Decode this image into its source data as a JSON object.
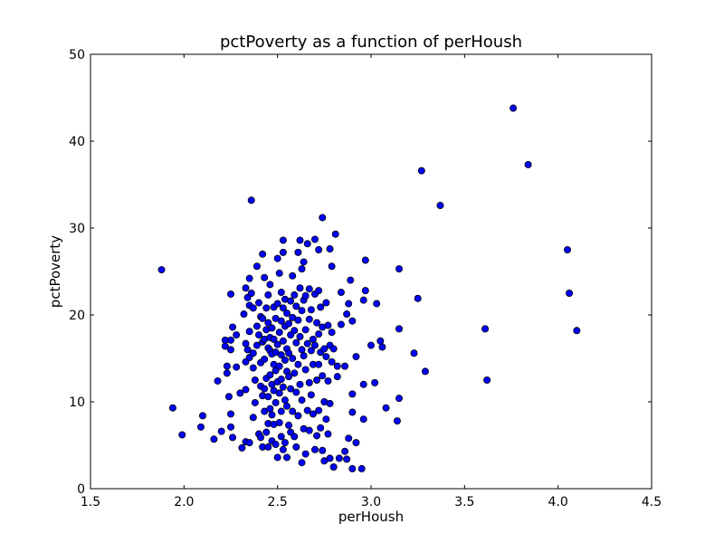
{
  "chart_data": {
    "type": "scatter",
    "title": "pctPoverty as a function of perHoush",
    "xlabel": "perHoush",
    "ylabel": "pctPoverty",
    "xlim": [
      1.5,
      4.5
    ],
    "ylim": [
      0,
      50
    ],
    "xticks": [
      1.5,
      2.0,
      2.5,
      3.0,
      3.5,
      4.0,
      4.5
    ],
    "xtick_labels": [
      "1.5",
      "2.0",
      "2.5",
      "3.0",
      "3.5",
      "4.0",
      "4.5"
    ],
    "yticks": [
      0,
      10,
      20,
      30,
      40,
      50
    ],
    "ytick_labels": [
      "0",
      "10",
      "20",
      "30",
      "40",
      "50"
    ],
    "grid": false,
    "marker_color": "#0000ff",
    "marker_edge": "#000000",
    "points": [
      [
        1.88,
        25.2
      ],
      [
        1.94,
        9.3
      ],
      [
        1.99,
        6.2
      ],
      [
        2.09,
        7.1
      ],
      [
        2.1,
        8.4
      ],
      [
        2.16,
        5.7
      ],
      [
        2.18,
        12.4
      ],
      [
        2.2,
        6.6
      ],
      [
        2.22,
        17.1
      ],
      [
        2.22,
        16.4
      ],
      [
        2.23,
        14.1
      ],
      [
        2.23,
        13.3
      ],
      [
        2.24,
        10.6
      ],
      [
        2.25,
        22.4
      ],
      [
        2.25,
        17.1
      ],
      [
        2.25,
        16.0
      ],
      [
        2.25,
        8.6
      ],
      [
        2.25,
        7.1
      ],
      [
        2.26,
        18.6
      ],
      [
        2.26,
        5.9
      ],
      [
        2.28,
        17.7
      ],
      [
        2.28,
        14.0
      ],
      [
        2.3,
        11.0
      ],
      [
        2.31,
        4.7
      ],
      [
        2.32,
        20.1
      ],
      [
        2.33,
        23.1
      ],
      [
        2.33,
        16.7
      ],
      [
        2.33,
        14.6
      ],
      [
        2.33,
        11.4
      ],
      [
        2.33,
        5.4
      ],
      [
        2.34,
        22.0
      ],
      [
        2.34,
        16.0
      ],
      [
        2.35,
        24.2
      ],
      [
        2.35,
        21.1
      ],
      [
        2.35,
        18.1
      ],
      [
        2.35,
        15.1
      ],
      [
        2.35,
        5.3
      ],
      [
        2.36,
        33.2
      ],
      [
        2.36,
        22.5
      ],
      [
        2.37,
        20.8
      ],
      [
        2.37,
        15.6
      ],
      [
        2.37,
        13.9
      ],
      [
        2.37,
        8.2
      ],
      [
        2.38,
        12.5
      ],
      [
        2.38,
        9.9
      ],
      [
        2.39,
        25.6
      ],
      [
        2.39,
        18.7
      ],
      [
        2.39,
        16.5
      ],
      [
        2.4,
        21.4
      ],
      [
        2.4,
        17.7
      ],
      [
        2.4,
        6.3
      ],
      [
        2.41,
        19.8
      ],
      [
        2.41,
        14.5
      ],
      [
        2.41,
        11.8
      ],
      [
        2.41,
        5.9
      ],
      [
        2.42,
        27.0
      ],
      [
        2.42,
        19.6
      ],
      [
        2.42,
        16.9
      ],
      [
        2.42,
        10.7
      ],
      [
        2.42,
        4.8
      ],
      [
        2.43,
        24.3
      ],
      [
        2.43,
        17.2
      ],
      [
        2.43,
        14.9
      ],
      [
        2.43,
        11.5
      ],
      [
        2.43,
        8.9
      ],
      [
        2.44,
        20.8
      ],
      [
        2.44,
        18.3
      ],
      [
        2.44,
        12.7
      ],
      [
        2.44,
        6.5
      ],
      [
        2.45,
        22.3
      ],
      [
        2.45,
        19.1
      ],
      [
        2.45,
        16.2
      ],
      [
        2.45,
        10.6
      ],
      [
        2.45,
        7.5
      ],
      [
        2.45,
        4.8
      ],
      [
        2.46,
        23.5
      ],
      [
        2.46,
        17.4
      ],
      [
        2.46,
        15.9
      ],
      [
        2.46,
        13.1
      ],
      [
        2.46,
        9.2
      ],
      [
        2.47,
        18.5
      ],
      [
        2.47,
        15.5
      ],
      [
        2.47,
        12.0
      ],
      [
        2.47,
        8.5
      ],
      [
        2.47,
        5.5
      ],
      [
        2.48,
        20.9
      ],
      [
        2.48,
        17.2
      ],
      [
        2.48,
        14.3
      ],
      [
        2.48,
        11.3
      ],
      [
        2.48,
        7.4
      ],
      [
        2.49,
        19.6
      ],
      [
        2.49,
        15.7
      ],
      [
        2.49,
        13.6
      ],
      [
        2.49,
        9.9
      ],
      [
        2.49,
        5.1
      ],
      [
        2.5,
        26.5
      ],
      [
        2.5,
        21.3
      ],
      [
        2.5,
        16.6
      ],
      [
        2.5,
        12.3
      ],
      [
        2.5,
        3.6
      ],
      [
        2.51,
        24.8
      ],
      [
        2.51,
        18.0
      ],
      [
        2.51,
        14.1
      ],
      [
        2.51,
        11.0
      ],
      [
        2.51,
        7.6
      ],
      [
        2.52,
        22.6
      ],
      [
        2.52,
        19.3
      ],
      [
        2.52,
        15.4
      ],
      [
        2.52,
        12.6
      ],
      [
        2.52,
        8.9
      ],
      [
        2.52,
        6.0
      ],
      [
        2.53,
        28.6
      ],
      [
        2.53,
        27.2
      ],
      [
        2.53,
        20.8
      ],
      [
        2.53,
        17.0
      ],
      [
        2.53,
        11.7
      ],
      [
        2.53,
        4.5
      ],
      [
        2.54,
        21.8
      ],
      [
        2.54,
        18.7
      ],
      [
        2.54,
        14.8
      ],
      [
        2.54,
        10.2
      ],
      [
        2.54,
        5.3
      ],
      [
        2.55,
        20.2
      ],
      [
        2.55,
        16.1
      ],
      [
        2.55,
        13.5
      ],
      [
        2.55,
        9.5
      ],
      [
        2.55,
        3.6
      ],
      [
        2.56,
        19.0
      ],
      [
        2.56,
        15.6
      ],
      [
        2.56,
        12.9
      ],
      [
        2.56,
        7.3
      ],
      [
        2.57,
        21.6
      ],
      [
        2.57,
        17.7
      ],
      [
        2.57,
        11.5
      ],
      [
        2.57,
        6.5
      ],
      [
        2.58,
        24.5
      ],
      [
        2.58,
        19.7
      ],
      [
        2.58,
        15.0
      ],
      [
        2.58,
        8.9
      ],
      [
        2.59,
        22.3
      ],
      [
        2.59,
        18.2
      ],
      [
        2.59,
        13.3
      ],
      [
        2.59,
        6.0
      ],
      [
        2.6,
        21.0
      ],
      [
        2.6,
        16.8
      ],
      [
        2.6,
        11.1
      ],
      [
        2.6,
        4.8
      ],
      [
        2.61,
        27.2
      ],
      [
        2.61,
        19.4
      ],
      [
        2.61,
        14.3
      ],
      [
        2.61,
        8.4
      ],
      [
        2.62,
        28.6
      ],
      [
        2.62,
        23.1
      ],
      [
        2.62,
        17.5
      ],
      [
        2.62,
        12.0
      ],
      [
        2.63,
        25.3
      ],
      [
        2.63,
        20.5
      ],
      [
        2.63,
        16.0
      ],
      [
        2.63,
        10.2
      ],
      [
        2.63,
        3.0
      ],
      [
        2.64,
        26.1
      ],
      [
        2.64,
        21.7
      ],
      [
        2.64,
        15.3
      ],
      [
        2.64,
        6.9
      ],
      [
        2.65,
        22.2
      ],
      [
        2.65,
        18.3
      ],
      [
        2.65,
        13.7
      ],
      [
        2.65,
        4.0
      ],
      [
        2.66,
        28.2
      ],
      [
        2.66,
        16.7
      ],
      [
        2.66,
        9.0
      ],
      [
        2.67,
        23.0
      ],
      [
        2.67,
        19.5
      ],
      [
        2.67,
        12.2
      ],
      [
        2.67,
        6.7
      ],
      [
        2.68,
        20.6
      ],
      [
        2.68,
        15.9
      ],
      [
        2.68,
        10.8
      ],
      [
        2.69,
        17.2
      ],
      [
        2.69,
        14.3
      ],
      [
        2.69,
        8.6
      ],
      [
        2.7,
        28.7
      ],
      [
        2.7,
        22.4
      ],
      [
        2.7,
        16.5
      ],
      [
        2.7,
        4.5
      ],
      [
        2.71,
        19.1
      ],
      [
        2.71,
        12.5
      ],
      [
        2.71,
        6.1
      ],
      [
        2.72,
        27.5
      ],
      [
        2.72,
        22.8
      ],
      [
        2.72,
        17.8
      ],
      [
        2.72,
        14.3
      ],
      [
        2.72,
        9.0
      ],
      [
        2.73,
        20.9
      ],
      [
        2.73,
        15.7
      ],
      [
        2.73,
        7.0
      ],
      [
        2.74,
        31.2
      ],
      [
        2.74,
        18.6
      ],
      [
        2.74,
        13.0
      ],
      [
        2.74,
        4.4
      ],
      [
        2.75,
        16.1
      ],
      [
        2.75,
        10.0
      ],
      [
        2.75,
        3.2
      ],
      [
        2.76,
        21.4
      ],
      [
        2.76,
        15.2
      ],
      [
        2.76,
        8.0
      ],
      [
        2.77,
        18.8
      ],
      [
        2.77,
        12.4
      ],
      [
        2.77,
        6.3
      ],
      [
        2.78,
        27.6
      ],
      [
        2.78,
        16.5
      ],
      [
        2.78,
        9.8
      ],
      [
        2.78,
        3.5
      ],
      [
        2.79,
        25.6
      ],
      [
        2.79,
        18.0
      ],
      [
        2.79,
        14.6
      ],
      [
        2.8,
        16.1
      ],
      [
        2.8,
        2.5
      ],
      [
        2.81,
        29.3
      ],
      [
        2.82,
        14.1
      ],
      [
        2.82,
        12.9
      ],
      [
        2.83,
        3.5
      ],
      [
        2.84,
        22.6
      ],
      [
        2.84,
        18.9
      ],
      [
        2.86,
        14.1
      ],
      [
        2.86,
        4.3
      ],
      [
        2.87,
        20.1
      ],
      [
        2.87,
        3.4
      ],
      [
        2.88,
        21.3
      ],
      [
        2.88,
        5.8
      ],
      [
        2.89,
        24.0
      ],
      [
        2.9,
        19.3
      ],
      [
        2.9,
        10.9
      ],
      [
        2.9,
        8.8
      ],
      [
        2.9,
        2.3
      ],
      [
        2.92,
        15.2
      ],
      [
        2.92,
        5.3
      ],
      [
        2.95,
        2.3
      ],
      [
        2.96,
        12.0
      ],
      [
        2.96,
        8.0
      ],
      [
        2.96,
        21.7
      ],
      [
        2.97,
        22.8
      ],
      [
        2.97,
        26.3
      ],
      [
        3.0,
        16.5
      ],
      [
        3.02,
        12.2
      ],
      [
        3.03,
        21.3
      ],
      [
        3.05,
        17.0
      ],
      [
        3.06,
        16.3
      ],
      [
        3.08,
        9.3
      ],
      [
        3.14,
        7.8
      ],
      [
        3.15,
        25.3
      ],
      [
        3.15,
        18.4
      ],
      [
        3.15,
        10.4
      ],
      [
        3.23,
        15.6
      ],
      [
        3.25,
        21.9
      ],
      [
        3.27,
        36.6
      ],
      [
        3.29,
        13.5
      ],
      [
        3.37,
        32.6
      ],
      [
        3.61,
        18.4
      ],
      [
        3.62,
        12.5
      ],
      [
        3.76,
        43.8
      ],
      [
        3.84,
        37.3
      ],
      [
        4.05,
        27.5
      ],
      [
        4.06,
        22.5
      ],
      [
        4.1,
        18.2
      ]
    ]
  }
}
